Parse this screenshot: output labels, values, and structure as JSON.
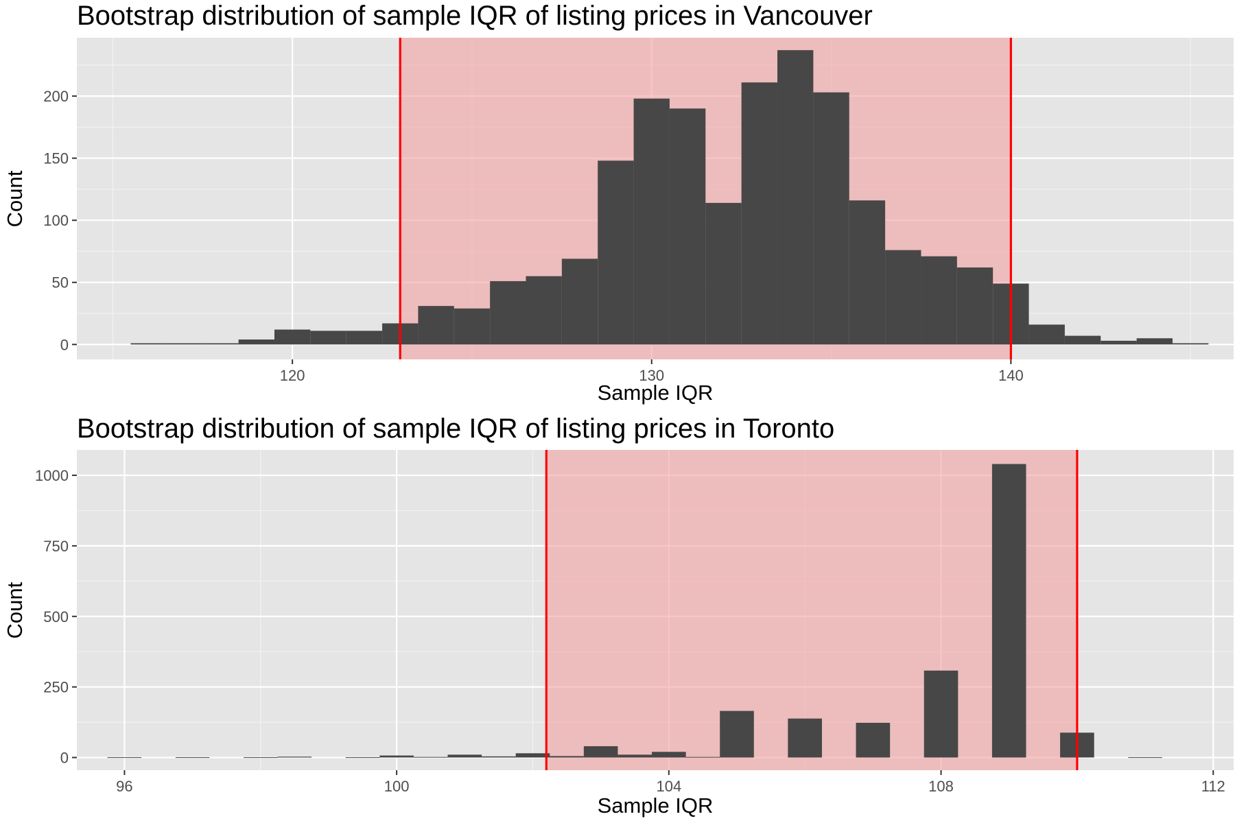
{
  "chart_data": [
    {
      "type": "bar",
      "title": "Bootstrap distribution of sample IQR of listing prices in Vancouver",
      "xlabel": "Sample IQR",
      "ylabel": "Count",
      "xlim": [
        114,
        146.2
      ],
      "ylim": [
        -12,
        247
      ],
      "x_ticks": [
        120,
        130,
        140
      ],
      "y_ticks": [
        0,
        50,
        100,
        150,
        200
      ],
      "bin_width": 1,
      "bin_centers": [
        116,
        117,
        118,
        119,
        120,
        121,
        122,
        123,
        124,
        125,
        126,
        127,
        128,
        129,
        130,
        131,
        132,
        133,
        134,
        135,
        136,
        137,
        138,
        139,
        140,
        141,
        142,
        143,
        144,
        145
      ],
      "values": [
        1,
        1,
        1,
        4,
        12,
        11,
        11,
        17,
        31,
        29,
        51,
        55,
        69,
        148,
        198,
        190,
        114,
        211,
        237,
        203,
        116,
        76,
        71,
        62,
        49,
        16,
        7,
        3,
        5,
        1
      ],
      "interval": {
        "lower": 123,
        "upper": 140
      },
      "colors": {
        "bar": "#474747",
        "interval_fill": "#f2a0a0",
        "interval_line": "#ff0000",
        "panel": "#e5e5e5"
      },
      "grid": true
    },
    {
      "type": "bar",
      "title": "Bootstrap distribution of sample IQR of listing prices in Toronto",
      "xlabel": "Sample IQR",
      "ylabel": "Count",
      "xlim": [
        95.3,
        112.3
      ],
      "ylim": [
        -45,
        1090
      ],
      "x_ticks": [
        96,
        100,
        104,
        108,
        112
      ],
      "y_ticks": [
        0,
        250,
        500,
        750,
        1000
      ],
      "bin_width": 0.5,
      "bin_centers": [
        96,
        97,
        98,
        98.5,
        99.5,
        100,
        100.5,
        101,
        101.5,
        102,
        102.5,
        103,
        103.5,
        104,
        104.5,
        105,
        106,
        107,
        108,
        109,
        110,
        111
      ],
      "values": [
        1,
        1,
        1,
        3,
        1,
        7,
        2,
        10,
        4,
        15,
        5,
        40,
        10,
        20,
        2,
        165,
        138,
        123,
        308,
        1040,
        88,
        1
      ],
      "interval": {
        "lower": 102.2,
        "upper": 110
      },
      "colors": {
        "bar": "#474747",
        "interval_fill": "#f2a0a0",
        "interval_line": "#ff0000",
        "panel": "#e5e5e5"
      },
      "grid": true
    }
  ]
}
